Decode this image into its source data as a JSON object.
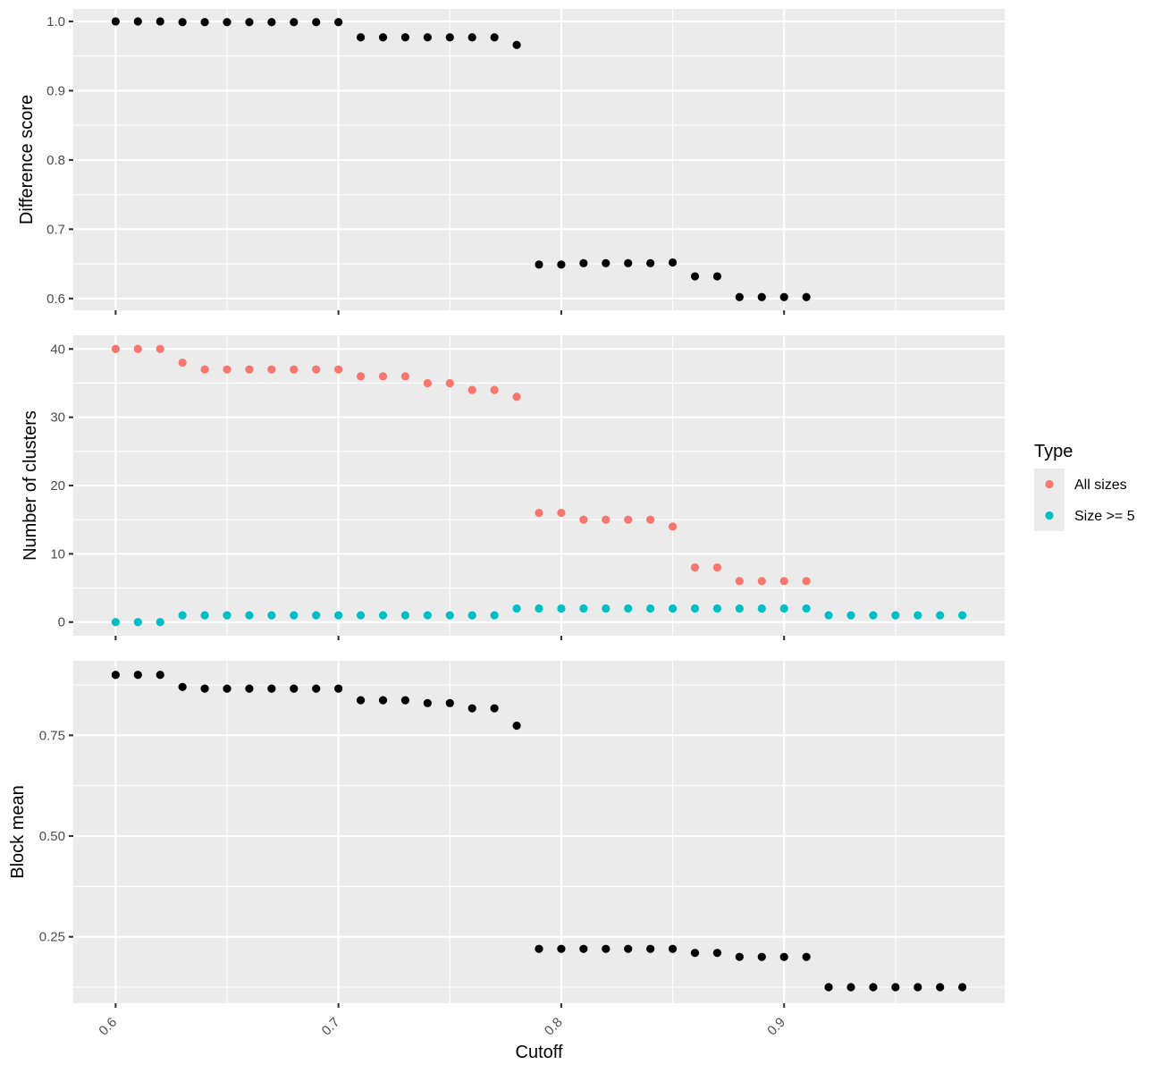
{
  "chart_data": [
    {
      "type": "scatter",
      "panel": "top",
      "xlabel": "",
      "ylabel": "Difference score",
      "ylim": [
        0.583,
        1.018
      ],
      "yticks": [
        0.6,
        0.7,
        0.8,
        0.9,
        1.0
      ],
      "ytick_labels": [
        "0.6",
        "0.7",
        "0.8",
        "0.9",
        "1.0"
      ],
      "grid": true,
      "series": [
        {
          "color": "#000000",
          "x": [
            0.6,
            0.61,
            0.62,
            0.63,
            0.64,
            0.65,
            0.66,
            0.67,
            0.68,
            0.69,
            0.7,
            0.71,
            0.72,
            0.73,
            0.74,
            0.75,
            0.76,
            0.77,
            0.78,
            0.79,
            0.8,
            0.81,
            0.82,
            0.83,
            0.84,
            0.85,
            0.86,
            0.87,
            0.88,
            0.89,
            0.9,
            0.91
          ],
          "y": [
            1.0,
            1.0,
            1.0,
            0.999,
            0.999,
            0.999,
            0.999,
            0.999,
            0.999,
            0.999,
            0.999,
            0.977,
            0.977,
            0.977,
            0.977,
            0.977,
            0.977,
            0.977,
            0.966,
            0.649,
            0.649,
            0.651,
            0.651,
            0.651,
            0.651,
            0.652,
            0.632,
            0.632,
            0.602,
            0.602,
            0.602,
            0.602
          ]
        }
      ]
    },
    {
      "type": "scatter",
      "panel": "middle",
      "xlabel": "",
      "ylabel": "Number of clusters",
      "ylim": [
        -2,
        42
      ],
      "yticks": [
        0,
        10,
        20,
        30,
        40
      ],
      "ytick_labels": [
        "0",
        "10",
        "20",
        "30",
        "40"
      ],
      "grid": true,
      "legend": {
        "title": "Type",
        "placement": "right",
        "entries": [
          "All sizes",
          "Size >= 5"
        ]
      },
      "series": [
        {
          "name": "All sizes",
          "color": "#F8766D",
          "x": [
            0.6,
            0.61,
            0.62,
            0.63,
            0.64,
            0.65,
            0.66,
            0.67,
            0.68,
            0.69,
            0.7,
            0.71,
            0.72,
            0.73,
            0.74,
            0.75,
            0.76,
            0.77,
            0.78,
            0.79,
            0.8,
            0.81,
            0.82,
            0.83,
            0.84,
            0.85,
            0.86,
            0.87,
            0.88,
            0.89,
            0.9,
            0.91
          ],
          "y": [
            40,
            40,
            40,
            38,
            37,
            37,
            37,
            37,
            37,
            37,
            37,
            36,
            36,
            36,
            35,
            35,
            34,
            34,
            33,
            16,
            16,
            15,
            15,
            15,
            15,
            14,
            8,
            8,
            6,
            6,
            6,
            6
          ]
        },
        {
          "name": "Size >= 5",
          "color": "#00BFC4",
          "x": [
            0.6,
            0.61,
            0.62,
            0.63,
            0.64,
            0.65,
            0.66,
            0.67,
            0.68,
            0.69,
            0.7,
            0.71,
            0.72,
            0.73,
            0.74,
            0.75,
            0.76,
            0.77,
            0.78,
            0.79,
            0.8,
            0.81,
            0.82,
            0.83,
            0.84,
            0.85,
            0.86,
            0.87,
            0.88,
            0.89,
            0.9,
            0.91,
            0.92,
            0.93,
            0.94,
            0.95,
            0.96,
            0.97,
            0.98
          ],
          "y": [
            0,
            0,
            0,
            1,
            1,
            1,
            1,
            1,
            1,
            1,
            1,
            1,
            1,
            1,
            1,
            1,
            1,
            1,
            2,
            2,
            2,
            2,
            2,
            2,
            2,
            2,
            2,
            2,
            2,
            2,
            2,
            2,
            1,
            1,
            1,
            1,
            1,
            1,
            1
          ]
        }
      ]
    },
    {
      "type": "scatter",
      "panel": "bottom",
      "xlabel": "Cutoff",
      "ylabel": "Block mean",
      "ylim": [
        0.085,
        0.935
      ],
      "yticks": [
        0.25,
        0.5,
        0.75
      ],
      "ytick_labels": [
        "0.25",
        "0.50",
        "0.75"
      ],
      "xlim": [
        0.581,
        0.999
      ],
      "xticks": [
        0.6,
        0.7,
        0.8,
        0.9
      ],
      "xtick_labels": [
        "0.6",
        "0.7",
        "0.8",
        "0.9"
      ],
      "grid": true,
      "series": [
        {
          "color": "#000000",
          "x": [
            0.6,
            0.61,
            0.62,
            0.63,
            0.64,
            0.65,
            0.66,
            0.67,
            0.68,
            0.69,
            0.7,
            0.71,
            0.72,
            0.73,
            0.74,
            0.75,
            0.76,
            0.77,
            0.78,
            0.79,
            0.8,
            0.81,
            0.82,
            0.83,
            0.84,
            0.85,
            0.86,
            0.87,
            0.88,
            0.89,
            0.9,
            0.91,
            0.92,
            0.93,
            0.94,
            0.95,
            0.96,
            0.97,
            0.98
          ],
          "y": [
            0.9,
            0.9,
            0.9,
            0.87,
            0.866,
            0.866,
            0.866,
            0.866,
            0.866,
            0.866,
            0.866,
            0.837,
            0.837,
            0.837,
            0.83,
            0.83,
            0.817,
            0.817,
            0.774,
            0.22,
            0.22,
            0.22,
            0.22,
            0.22,
            0.22,
            0.22,
            0.21,
            0.21,
            0.2,
            0.2,
            0.2,
            0.2,
            0.125,
            0.125,
            0.125,
            0.125,
            0.125,
            0.125,
            0.125
          ]
        }
      ]
    }
  ]
}
